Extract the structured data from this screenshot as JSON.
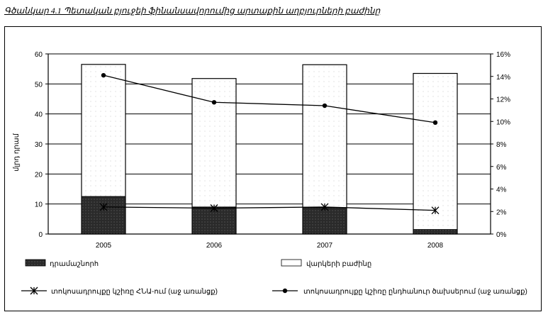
{
  "title": "Գծանկար 4.1 Պետական բյուջեի ֆինանսավորումից արտաքին աղբյուրների բաժինը",
  "chart_data": {
    "type": "bar",
    "categories": [
      "2005",
      "2006",
      "2007",
      "2008"
    ],
    "ylabel": "մլրդ դրամ",
    "ylim": [
      0,
      60
    ],
    "y_ticks": [
      "0",
      "10",
      "20",
      "30",
      "40",
      "50",
      "60"
    ],
    "y2lim": [
      0,
      16
    ],
    "y2_ticks": [
      "0%",
      "2%",
      "4%",
      "6%",
      "8%",
      "10%",
      "12%",
      "14%",
      "16%"
    ],
    "grid": true,
    "legend_position": "bottom",
    "series": [
      {
        "name": "դրամաշնորհ",
        "kind": "bar",
        "axis": "left",
        "color": "#2a2a2a",
        "values": [
          12.5,
          9.0,
          8.8,
          1.5
        ]
      },
      {
        "name": "վարկերի բաժինը",
        "kind": "bar",
        "axis": "left",
        "color": "#ffffff",
        "values": [
          56.5,
          51.8,
          56.4,
          53.5
        ]
      },
      {
        "name": "տոկոսադրույքը կշիռը ՀՆԱ-ում (աջ առանցք)",
        "kind": "line",
        "axis": "right",
        "marker": "star",
        "values": [
          2.4,
          2.3,
          2.4,
          2.1
        ]
      },
      {
        "name": "տոկոսադրույքը կշիռը ընդհանուր ծախսերում (աջ առանցք)",
        "kind": "line",
        "axis": "right",
        "marker": "circle",
        "values": [
          14.1,
          11.7,
          11.4,
          9.9
        ]
      }
    ]
  }
}
